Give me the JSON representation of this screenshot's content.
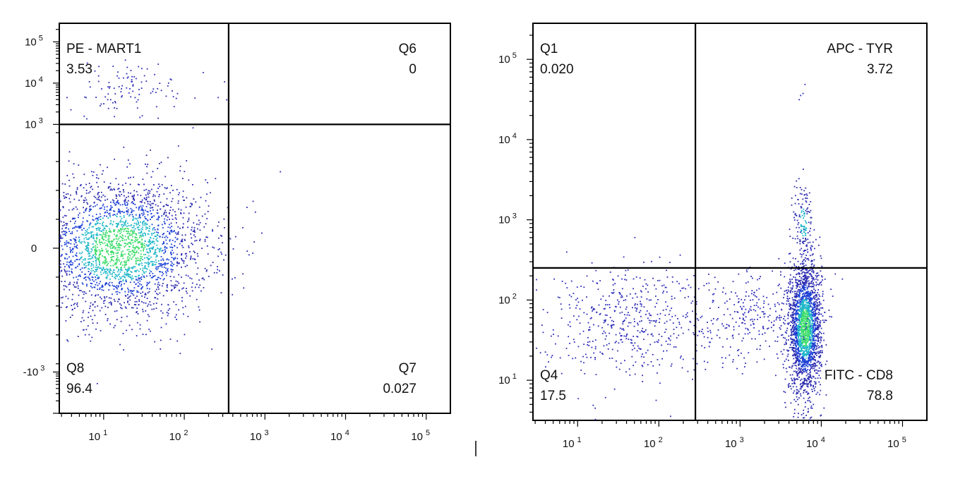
{
  "chart_data": [
    {
      "type": "scatter",
      "title": "",
      "xlabel": "",
      "ylabel": "",
      "x_ticks": [
        {
          "base": "10",
          "exp": "1"
        },
        {
          "base": "10",
          "exp": "2"
        },
        {
          "base": "10",
          "exp": "3"
        },
        {
          "base": "10",
          "exp": "4"
        },
        {
          "base": "10",
          "exp": "5"
        }
      ],
      "y_ticks": [
        {
          "base": "10",
          "exp": "5",
          "value": 5
        },
        {
          "base": "10",
          "exp": "4",
          "value": 4
        },
        {
          "base": "10",
          "exp": "3",
          "value": 3
        },
        {
          "base": "0",
          "exp": "",
          "value": 0
        },
        {
          "base": "-10",
          "exp": "3",
          "value": -3
        }
      ],
      "x_range_log10": [
        0.45,
        5.3
      ],
      "y_range_log10": [
        -4.0,
        5.45
      ],
      "gate_x_log10": 2.55,
      "gate_y_log10": 3.0,
      "quadrants": [
        {
          "name": "PE - MART1",
          "value": "3.53",
          "position": "top-left"
        },
        {
          "name": "Q6",
          "value": "0",
          "position": "top-right"
        },
        {
          "name": "Q8",
          "value": "96.4",
          "position": "bottom-left"
        },
        {
          "name": "Q7",
          "value": "0.027",
          "position": "bottom-right"
        }
      ],
      "populations": [
        {
          "cx_log10": 1.2,
          "cy_log10": 0.0,
          "sx": 0.55,
          "sy": 0.85,
          "count": 2600,
          "density": "high"
        },
        {
          "cx_log10": 1.3,
          "cy_log10": 3.85,
          "sx": 0.5,
          "sy": 0.35,
          "count": 110,
          "density": "low"
        },
        {
          "cx_log10": 3.0,
          "cy_log10": 0.4,
          "sx": 0.4,
          "sy": 0.3,
          "count": 2,
          "density": "low"
        }
      ]
    },
    {
      "type": "scatter",
      "title": "",
      "xlabel": "",
      "ylabel": "",
      "x_ticks": [
        {
          "base": "10",
          "exp": "1"
        },
        {
          "base": "10",
          "exp": "2"
        },
        {
          "base": "10",
          "exp": "3"
        },
        {
          "base": "10",
          "exp": "4"
        },
        {
          "base": "10",
          "exp": "5"
        }
      ],
      "y_ticks": [
        {
          "base": "10",
          "exp": "5",
          "value": 5
        },
        {
          "base": "10",
          "exp": "4",
          "value": 4
        },
        {
          "base": "10",
          "exp": "3",
          "value": 3
        },
        {
          "base": "10",
          "exp": "2",
          "value": 2
        },
        {
          "base": "10",
          "exp": "1",
          "value": 1
        }
      ],
      "x_range_log10": [
        0.45,
        5.3
      ],
      "y_range_log10": [
        0.5,
        5.45
      ],
      "gate_x_log10": 2.45,
      "gate_y_log10": 2.4,
      "quadrants": [
        {
          "name": "Q1",
          "value": "0.020",
          "position": "top-left"
        },
        {
          "name": "APC - TYR",
          "value": "3.72",
          "position": "top-right"
        },
        {
          "name": "Q4",
          "value": "17.5",
          "position": "bottom-left"
        },
        {
          "name": "FITC - CD8",
          "value": "78.8",
          "position": "bottom-right"
        }
      ],
      "populations": [
        {
          "cx_log10": 3.8,
          "cy_log10": 1.65,
          "sx": 0.1,
          "sy": 0.4,
          "count": 2200,
          "density": "high"
        },
        {
          "cx_log10": 3.78,
          "cy_log10": 2.95,
          "sx": 0.06,
          "sy": 0.3,
          "count": 140,
          "density": "mid"
        },
        {
          "cx_log10": 1.6,
          "cy_log10": 1.75,
          "sx": 0.55,
          "sy": 0.35,
          "count": 520,
          "density": "low"
        },
        {
          "cx_log10": 3.2,
          "cy_log10": 1.8,
          "sx": 0.45,
          "sy": 0.3,
          "count": 300,
          "density": "low"
        },
        {
          "cx_log10": 3.75,
          "cy_log10": 4.6,
          "sx": 0.03,
          "sy": 0.05,
          "count": 4,
          "density": "low"
        }
      ]
    }
  ]
}
